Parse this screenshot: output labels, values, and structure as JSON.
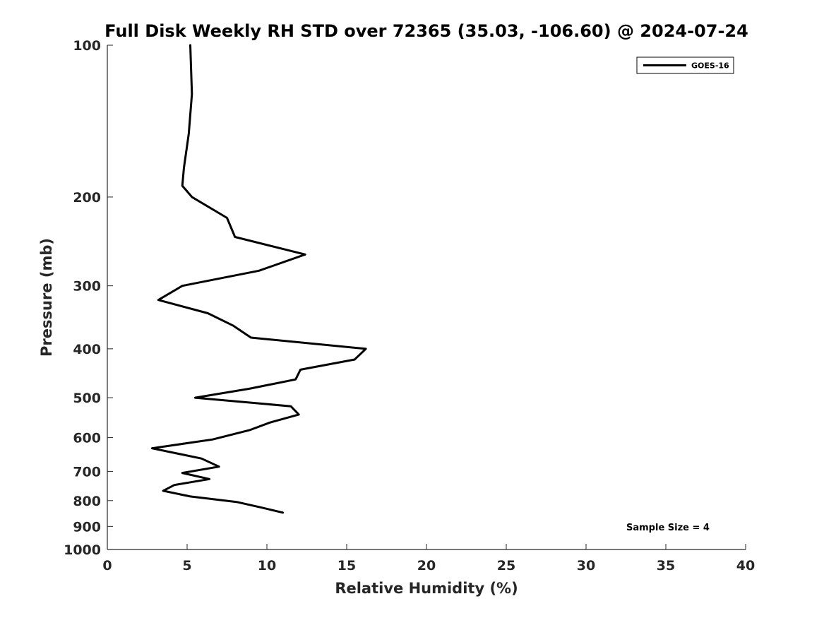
{
  "chart_data": {
    "type": "line",
    "title": "Full Disk Weekly RH STD over 72365 (35.03, -106.60) @ 2024-07-24",
    "xlabel": "Relative Humidity (%)",
    "ylabel": "Pressure (mb)",
    "xlim": [
      0,
      40
    ],
    "ylim": [
      100,
      1000
    ],
    "y_scale": "log",
    "y_reversed": true,
    "x_ticks": [
      "0",
      "5",
      "10",
      "15",
      "20",
      "25",
      "30",
      "35",
      "40"
    ],
    "x_tick_values": [
      0,
      5,
      10,
      15,
      20,
      25,
      30,
      35,
      40
    ],
    "y_ticks": [
      "100",
      "200",
      "300",
      "400",
      "500",
      "600",
      "700",
      "800",
      "900",
      "1000"
    ],
    "y_tick_values": [
      100,
      200,
      300,
      400,
      500,
      600,
      700,
      800,
      900,
      1000
    ],
    "grid": false,
    "legend_position": "top-right",
    "annotation": "Sample Size = 4",
    "series": [
      {
        "name": "GOES-16",
        "color": "#000000",
        "x": [
          5.2,
          5.3,
          5.1,
          4.8,
          4.7,
          5.3,
          7.5,
          8.0,
          12.4,
          9.5,
          4.7,
          3.2,
          6.3,
          7.9,
          9.0,
          16.2,
          15.5,
          12.1,
          11.8,
          8.9,
          5.5,
          11.5,
          12.0,
          10.2,
          8.9,
          6.6,
          2.8,
          5.9,
          7.0,
          4.7,
          6.4,
          4.2,
          3.5,
          5.2,
          8.1,
          9.6,
          11.0
        ],
        "y": [
          100,
          125,
          150,
          175,
          190,
          200,
          220,
          240,
          260,
          280,
          300,
          320,
          340,
          360,
          380,
          400,
          420,
          440,
          460,
          480,
          500,
          520,
          540,
          560,
          580,
          605,
          630,
          660,
          685,
          705,
          725,
          745,
          765,
          785,
          805,
          825,
          845
        ]
      }
    ]
  }
}
